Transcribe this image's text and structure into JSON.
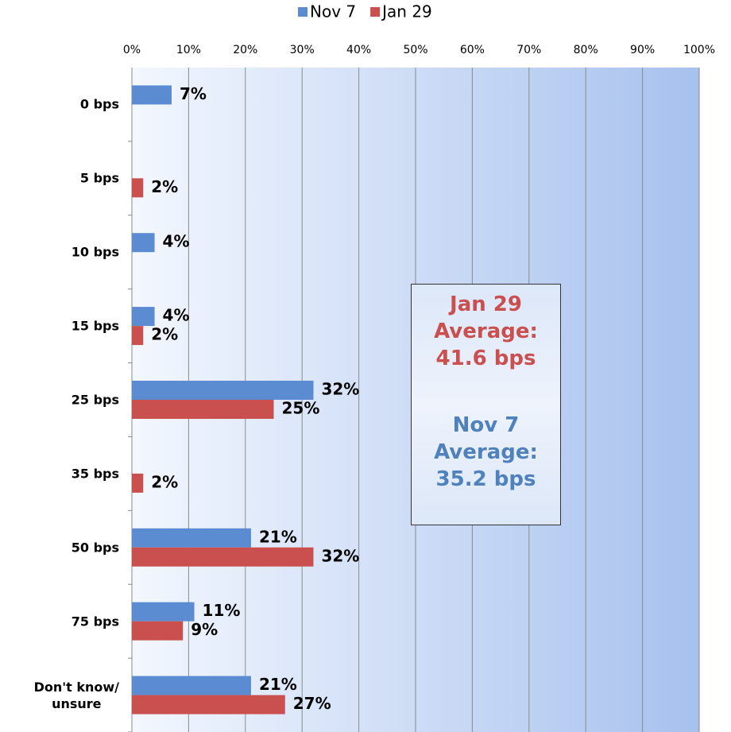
{
  "chart_data": {
    "type": "bar",
    "orientation": "horizontal",
    "categories": [
      "0 bps",
      "5 bps",
      "10 bps",
      "15 bps",
      "25 bps",
      "35 bps",
      "50 bps",
      "75 bps",
      "Don't know/\nunsure"
    ],
    "series": [
      {
        "name": "Nov 7",
        "color": "#5b8bd0",
        "values": [
          7,
          null,
          4,
          4,
          32,
          null,
          21,
          11,
          21
        ],
        "value_labels": [
          "7%",
          null,
          "4%",
          "4%",
          "32%",
          null,
          "21%",
          "11%",
          "21%"
        ]
      },
      {
        "name": "Jan 29",
        "color": "#c9504f",
        "values": [
          null,
          2,
          null,
          2,
          25,
          2,
          32,
          9,
          27
        ],
        "value_labels": [
          null,
          "2%",
          null,
          "2%",
          "25%",
          "2%",
          "32%",
          "9%",
          "27%"
        ]
      }
    ],
    "xlim": [
      0,
      100
    ],
    "xticks": [
      {
        "value": 0,
        "label": "0%"
      },
      {
        "value": 10,
        "label": "10%"
      },
      {
        "value": 20,
        "label": "20%"
      },
      {
        "value": 30,
        "label": "30%"
      },
      {
        "value": 40,
        "label": "40%"
      },
      {
        "value": 50,
        "label": "50%"
      },
      {
        "value": 60,
        "label": "60%"
      },
      {
        "value": 70,
        "label": "70%"
      },
      {
        "value": 80,
        "label": "80%"
      },
      {
        "value": 90,
        "label": "90%"
      },
      {
        "value": 100,
        "label": "100%"
      }
    ],
    "grid": true,
    "legend_position": "top",
    "annotations": [
      {
        "text": "Jan 29\nAverage:\n41.6 bps",
        "color": "#c9504f"
      },
      {
        "text": "Nov 7\nAverage:\n35.2 bps",
        "color": "#4f81bd"
      }
    ]
  }
}
